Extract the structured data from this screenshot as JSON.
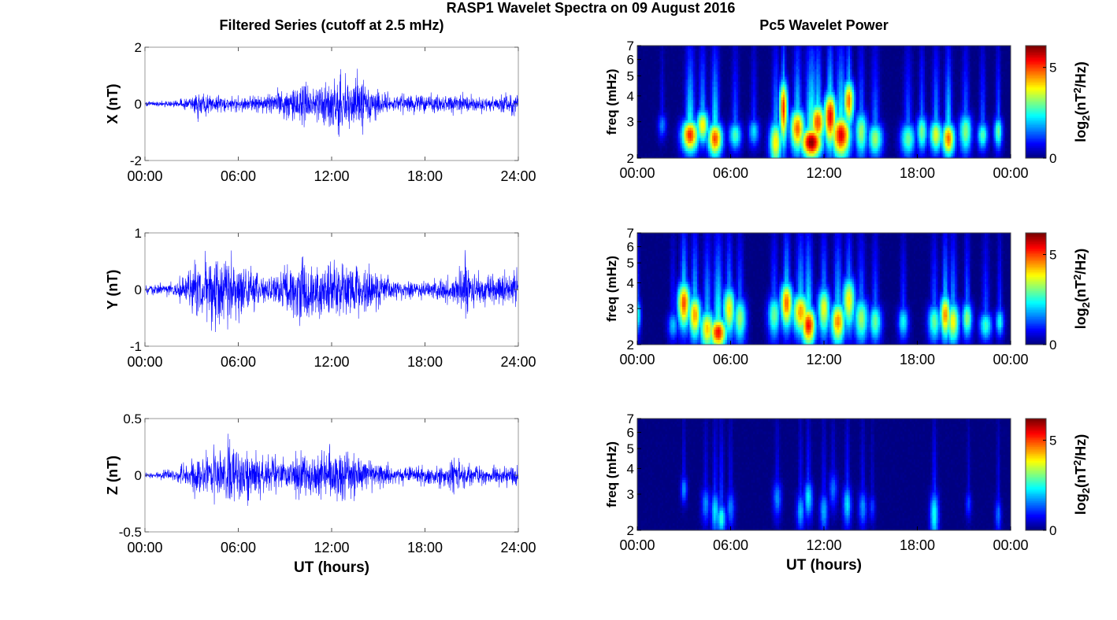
{
  "figure": {
    "title": "RASP1 Wavelet Spectra on 09 August 2016",
    "left_column_title": "Filtered Series (cutoff at 2.5 mHz)",
    "right_column_title": "Pc5 Wavelet Power"
  },
  "chart_data": [
    {
      "type": "line",
      "panel": "X time series",
      "ylabel": "X (nT)",
      "xlabel": "",
      "xlim": [
        0,
        24
      ],
      "ylim": [
        -2,
        2
      ],
      "yticks": [
        -2,
        0,
        2
      ],
      "xtick_labels": [
        "00:00",
        "06:00",
        "12:00",
        "18:00",
        "24:00"
      ],
      "color": "#0000ff",
      "envelope": [
        [
          0,
          0.1
        ],
        [
          2,
          0.15
        ],
        [
          3,
          0.3
        ],
        [
          3.5,
          0.7
        ],
        [
          4,
          0.4
        ],
        [
          5,
          0.35
        ],
        [
          6,
          0.3
        ],
        [
          7,
          0.35
        ],
        [
          8,
          0.45
        ],
        [
          9,
          0.7
        ],
        [
          10,
          0.9
        ],
        [
          11,
          0.8
        ],
        [
          12,
          1.0
        ],
        [
          12.3,
          1.5
        ],
        [
          13,
          1.0
        ],
        [
          13.8,
          1.3
        ],
        [
          14.5,
          0.8
        ],
        [
          15,
          0.5
        ],
        [
          16,
          0.4
        ],
        [
          18,
          0.4
        ],
        [
          20,
          0.45
        ],
        [
          22,
          0.35
        ],
        [
          24,
          0.45
        ]
      ]
    },
    {
      "type": "line",
      "panel": "Y time series",
      "ylabel": "Y (nT)",
      "xlabel": "",
      "xlim": [
        0,
        24
      ],
      "ylim": [
        -1,
        1
      ],
      "yticks": [
        -1,
        0,
        1
      ],
      "xtick_labels": [
        "00:00",
        "06:00",
        "12:00",
        "18:00",
        "24:00"
      ],
      "color": "#0000ff",
      "envelope": [
        [
          0,
          0.1
        ],
        [
          2,
          0.15
        ],
        [
          3,
          0.55
        ],
        [
          4,
          0.7
        ],
        [
          5,
          0.8
        ],
        [
          6,
          0.6
        ],
        [
          7,
          0.45
        ],
        [
          8,
          0.3
        ],
        [
          9,
          0.5
        ],
        [
          10,
          0.65
        ],
        [
          11,
          0.65
        ],
        [
          12,
          0.6
        ],
        [
          13,
          0.55
        ],
        [
          14,
          0.5
        ],
        [
          15,
          0.4
        ],
        [
          16,
          0.2
        ],
        [
          18,
          0.2
        ],
        [
          20,
          0.3
        ],
        [
          20.5,
          0.75
        ],
        [
          21,
          0.4
        ],
        [
          22,
          0.3
        ],
        [
          24,
          0.4
        ]
      ]
    },
    {
      "type": "line",
      "panel": "Z time series",
      "ylabel": "Z (nT)",
      "xlabel": "UT (hours)",
      "xlim": [
        0,
        24
      ],
      "ylim": [
        -0.5,
        0.5
      ],
      "yticks": [
        -0.5,
        0,
        0.5
      ],
      "xtick_labels": [
        "00:00",
        "06:00",
        "12:00",
        "18:00",
        "24:00"
      ],
      "color": "#0000ff",
      "envelope": [
        [
          0,
          0.03
        ],
        [
          2,
          0.06
        ],
        [
          3,
          0.2
        ],
        [
          4,
          0.25
        ],
        [
          5,
          0.3
        ],
        [
          5.5,
          0.4
        ],
        [
          6,
          0.3
        ],
        [
          7,
          0.25
        ],
        [
          8,
          0.18
        ],
        [
          9,
          0.2
        ],
        [
          10,
          0.22
        ],
        [
          11,
          0.25
        ],
        [
          12,
          0.28
        ],
        [
          13,
          0.25
        ],
        [
          14,
          0.2
        ],
        [
          15,
          0.15
        ],
        [
          16,
          0.1
        ],
        [
          18,
          0.1
        ],
        [
          19,
          0.12
        ],
        [
          20,
          0.18
        ],
        [
          21,
          0.12
        ],
        [
          22,
          0.1
        ],
        [
          24,
          0.12
        ]
      ]
    },
    {
      "type": "heatmap",
      "panel": "X wavelet power",
      "ylabel": "freq (mHz)",
      "xlabel": "",
      "xlim": [
        0,
        24
      ],
      "ylim": [
        2,
        7
      ],
      "yscale": "log",
      "yticks": [
        2,
        3,
        4,
        5,
        6,
        7
      ],
      "xtick_labels": [
        "00:00",
        "06:00",
        "12:00",
        "18:00",
        "00:00"
      ],
      "colormap": "jet",
      "colorbar": {
        "label": "log2(nT^2/Hz)",
        "ticks": [
          0,
          5
        ],
        "range": [
          0,
          6.2
        ]
      },
      "blobs": [
        [
          1.6,
          2.9,
          0.2,
          0.3,
          1.6
        ],
        [
          3.4,
          2.6,
          0.4,
          0.35,
          5.2
        ],
        [
          4.2,
          2.9,
          0.3,
          0.4,
          4.0
        ],
        [
          5.0,
          2.5,
          0.35,
          0.35,
          5.0
        ],
        [
          6.3,
          2.6,
          0.3,
          0.3,
          2.8
        ],
        [
          7.5,
          2.7,
          0.25,
          0.3,
          2.2
        ],
        [
          8.9,
          2.4,
          0.3,
          0.45,
          4.0
        ],
        [
          9.4,
          3.5,
          0.2,
          0.9,
          5.2
        ],
        [
          10.3,
          2.8,
          0.35,
          0.5,
          4.8
        ],
        [
          11.2,
          2.4,
          0.5,
          0.3,
          6.2
        ],
        [
          11.6,
          3.0,
          0.35,
          0.5,
          5.0
        ],
        [
          12.4,
          3.2,
          0.3,
          0.7,
          5.5
        ],
        [
          13.1,
          2.6,
          0.45,
          0.45,
          5.6
        ],
        [
          13.6,
          3.8,
          0.25,
          0.7,
          4.8
        ],
        [
          14.4,
          2.7,
          0.3,
          0.5,
          3.3
        ],
        [
          15.3,
          2.5,
          0.35,
          0.35,
          3.3
        ],
        [
          17.4,
          2.5,
          0.35,
          0.35,
          3.0
        ],
        [
          18.3,
          2.7,
          0.25,
          0.4,
          3.1
        ],
        [
          19.2,
          2.6,
          0.3,
          0.35,
          3.8
        ],
        [
          20.0,
          2.5,
          0.3,
          0.35,
          4.8
        ],
        [
          21.1,
          2.7,
          0.3,
          0.45,
          3.2
        ],
        [
          22.2,
          2.6,
          0.25,
          0.3,
          2.8
        ],
        [
          23.2,
          2.7,
          0.2,
          0.35,
          3.0
        ]
      ]
    },
    {
      "type": "heatmap",
      "panel": "Y wavelet power",
      "ylabel": "freq (mHz)",
      "xlabel": "",
      "xlim": [
        0,
        24
      ],
      "ylim": [
        2,
        7
      ],
      "yscale": "log",
      "yticks": [
        2,
        3,
        4,
        5,
        6,
        7
      ],
      "xtick_labels": [
        "00:00",
        "06:00",
        "12:00",
        "18:00",
        "00:00"
      ],
      "colormap": "jet",
      "colorbar": {
        "label": "log2(nT^2/Hz)",
        "ticks": [
          0,
          5
        ],
        "range": [
          0,
          6.2
        ]
      },
      "blobs": [
        [
          0.05,
          2.8,
          0.15,
          0.4,
          2.4
        ],
        [
          2.3,
          2.5,
          0.25,
          0.3,
          2.0
        ],
        [
          3.0,
          3.2,
          0.3,
          0.6,
          5.0
        ],
        [
          3.7,
          2.8,
          0.3,
          0.5,
          4.5
        ],
        [
          4.5,
          2.4,
          0.35,
          0.4,
          4.2
        ],
        [
          5.2,
          2.3,
          0.4,
          0.3,
          5.4
        ],
        [
          5.9,
          3.0,
          0.3,
          0.6,
          4.0
        ],
        [
          6.6,
          2.7,
          0.3,
          0.5,
          3.3
        ],
        [
          8.8,
          2.8,
          0.3,
          0.5,
          3.0
        ],
        [
          9.6,
          3.2,
          0.3,
          0.6,
          4.8
        ],
        [
          10.5,
          2.9,
          0.4,
          0.5,
          4.5
        ],
        [
          11.0,
          2.5,
          0.35,
          0.4,
          5.4
        ],
        [
          12.0,
          3.0,
          0.3,
          0.6,
          3.8
        ],
        [
          12.9,
          2.6,
          0.35,
          0.45,
          4.6
        ],
        [
          13.6,
          3.3,
          0.3,
          0.7,
          4.0
        ],
        [
          14.4,
          2.7,
          0.35,
          0.5,
          3.3
        ],
        [
          15.3,
          2.6,
          0.3,
          0.4,
          3.0
        ],
        [
          17.1,
          2.6,
          0.25,
          0.35,
          2.4
        ],
        [
          19.1,
          2.6,
          0.3,
          0.4,
          3.0
        ],
        [
          19.8,
          2.8,
          0.25,
          0.5,
          4.6
        ],
        [
          20.3,
          2.6,
          0.3,
          0.45,
          3.9
        ],
        [
          21.2,
          2.7,
          0.25,
          0.4,
          3.2
        ],
        [
          22.4,
          2.5,
          0.3,
          0.3,
          2.7
        ],
        [
          23.3,
          2.6,
          0.2,
          0.3,
          2.5
        ]
      ]
    },
    {
      "type": "heatmap",
      "panel": "Z wavelet power",
      "ylabel": "freq (mHz)",
      "xlabel": "UT (hours)",
      "xlim": [
        0,
        24
      ],
      "ylim": [
        2,
        7
      ],
      "yscale": "log",
      "yticks": [
        2,
        3,
        4,
        5,
        6,
        7
      ],
      "xtick_labels": [
        "00:00",
        "06:00",
        "12:00",
        "18:00",
        "00:00"
      ],
      "colormap": "jet",
      "colorbar": {
        "label": "log2(nT^2/Hz)",
        "ticks": [
          0,
          5
        ],
        "range": [
          0,
          6.2
        ]
      },
      "blobs": [
        [
          3.0,
          3.2,
          0.15,
          0.35,
          1.8
        ],
        [
          4.4,
          2.7,
          0.2,
          0.4,
          1.7
        ],
        [
          5.0,
          2.5,
          0.2,
          0.45,
          2.2
        ],
        [
          5.4,
          2.3,
          0.22,
          0.3,
          2.6
        ],
        [
          6.0,
          2.6,
          0.2,
          0.4,
          1.6
        ],
        [
          9.0,
          2.9,
          0.2,
          0.45,
          1.7
        ],
        [
          10.5,
          2.5,
          0.2,
          0.4,
          1.9
        ],
        [
          11.0,
          2.9,
          0.2,
          0.45,
          2.3
        ],
        [
          12.0,
          2.5,
          0.2,
          0.4,
          1.9
        ],
        [
          12.6,
          3.2,
          0.2,
          0.5,
          1.5
        ],
        [
          13.5,
          2.7,
          0.2,
          0.45,
          2.2
        ],
        [
          14.5,
          2.6,
          0.2,
          0.4,
          1.7
        ],
        [
          15.1,
          2.6,
          0.15,
          0.3,
          1.2
        ],
        [
          19.1,
          2.4,
          0.2,
          0.5,
          2.5
        ],
        [
          21.3,
          2.7,
          0.15,
          0.3,
          1.2
        ],
        [
          23.2,
          2.4,
          0.15,
          0.35,
          1.5
        ]
      ]
    }
  ]
}
